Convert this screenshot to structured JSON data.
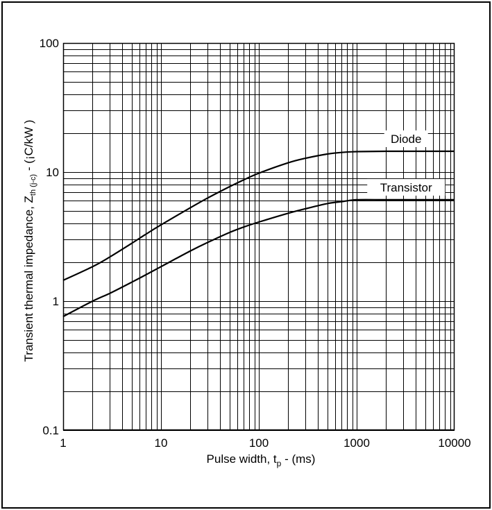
{
  "chart_data": {
    "type": "line",
    "title": "",
    "xlabel": {
      "main": "Pulse width, t",
      "sub": "p",
      "tail": " - (ms)"
    },
    "ylabel": {
      "main": "Transient thermal impedance, Z",
      "sub": "th (j-c)",
      "tail": " - (¡C/kW )"
    },
    "xscale": "log",
    "yscale": "log",
    "xlim": [
      1,
      10000
    ],
    "ylim": [
      0.1,
      100
    ],
    "grid": true,
    "xticks": [
      1,
      10,
      100,
      1000,
      10000
    ],
    "xtick_labels": [
      "1",
      "10",
      "100",
      "1000",
      "10000"
    ],
    "yticks": [
      0.1,
      1,
      10,
      100
    ],
    "ytick_labels": [
      "0.1",
      "1",
      "10",
      "100"
    ],
    "series": [
      {
        "name": "Diode",
        "color": "#000000",
        "x": [
          1,
          2,
          3,
          5,
          7,
          10,
          20,
          30,
          50,
          70,
          100,
          200,
          300,
          500,
          700,
          1000,
          2000,
          5000,
          10000
        ],
        "y": [
          1.45,
          1.85,
          2.2,
          2.8,
          3.3,
          3.9,
          5.3,
          6.3,
          7.7,
          8.7,
          9.8,
          11.8,
          12.8,
          13.8,
          14.2,
          14.4,
          14.5,
          14.5,
          14.5
        ]
      },
      {
        "name": "Transistor",
        "color": "#000000",
        "x": [
          1,
          2,
          3,
          5,
          7,
          10,
          20,
          30,
          50,
          70,
          100,
          200,
          300,
          500,
          700,
          1000,
          2000,
          5000,
          10000
        ],
        "y": [
          0.76,
          1.0,
          1.15,
          1.4,
          1.6,
          1.85,
          2.45,
          2.85,
          3.4,
          3.75,
          4.1,
          4.8,
          5.2,
          5.7,
          5.9,
          6.1,
          6.1,
          6.1,
          6.1
        ]
      }
    ]
  }
}
